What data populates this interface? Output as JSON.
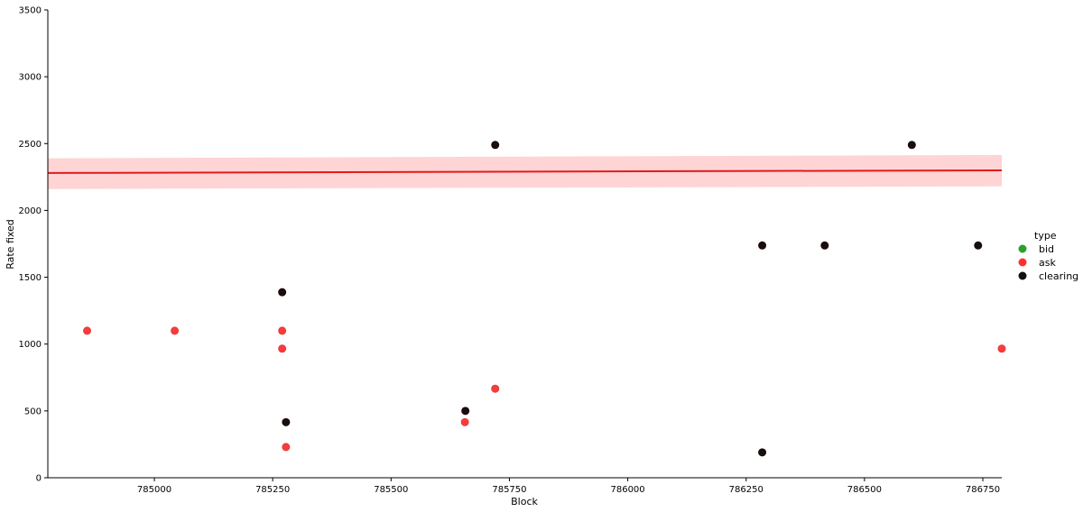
{
  "chart_data": {
    "type": "scatter",
    "title": "",
    "xlabel": "Block",
    "ylabel": "Rate fixed",
    "xlim": [
      784775,
      786790
    ],
    "ylim": [
      0,
      3500
    ],
    "x_ticks": [
      "785000",
      "785250",
      "785500",
      "785750",
      "786000",
      "786250",
      "786500",
      "786750"
    ],
    "y_ticks": [
      "0",
      "500",
      "1000",
      "1500",
      "2000",
      "2500",
      "3000",
      "3500"
    ],
    "legend": {
      "title": "type",
      "position": "right",
      "items": [
        {
          "label": "bid",
          "color": "#2ca02c"
        },
        {
          "label": "ask",
          "color": "#ff3030"
        },
        {
          "label": "clearing",
          "color": "#111111"
        }
      ]
    },
    "series": [
      {
        "name": "bid",
        "color": "#2ca02c",
        "points": []
      },
      {
        "name": "ask",
        "color": "#ff3030",
        "points": [
          {
            "x": 784858,
            "y": 1100
          },
          {
            "x": 785043,
            "y": 1100
          },
          {
            "x": 785270,
            "y": 1100
          },
          {
            "x": 785270,
            "y": 966
          },
          {
            "x": 785278,
            "y": 230
          },
          {
            "x": 785656,
            "y": 416
          },
          {
            "x": 785720,
            "y": 666
          },
          {
            "x": 786790,
            "y": 966
          }
        ]
      },
      {
        "name": "clearing",
        "color": "#111111",
        "points": [
          {
            "x": 785270,
            "y": 1388
          },
          {
            "x": 785278,
            "y": 416
          },
          {
            "x": 785657,
            "y": 500
          },
          {
            "x": 785720,
            "y": 2490
          },
          {
            "x": 786284,
            "y": 1738
          },
          {
            "x": 786284,
            "y": 190
          },
          {
            "x": 786416,
            "y": 1738
          },
          {
            "x": 786600,
            "y": 2490
          },
          {
            "x": 786740,
            "y": 1738
          }
        ]
      }
    ],
    "regression": {
      "color": "#e31a1c",
      "band_color": "#ffcccc",
      "line": [
        {
          "x": 784775,
          "y": 2280
        },
        {
          "x": 786790,
          "y": 2300
        }
      ],
      "upper": [
        {
          "x": 784775,
          "y": 2390
        },
        {
          "x": 786790,
          "y": 2415
        }
      ],
      "lower": [
        {
          "x": 784775,
          "y": 2160
        },
        {
          "x": 786790,
          "y": 2180
        }
      ]
    }
  }
}
